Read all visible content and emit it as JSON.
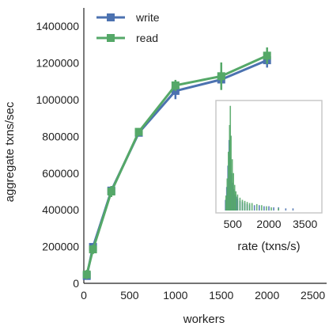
{
  "chart_data": [
    {
      "type": "line",
      "title": "",
      "xlabel": "workers",
      "ylabel": "aggregate txns/sec",
      "xlim": [
        0,
        2650
      ],
      "ylim": [
        0,
        1500000
      ],
      "xticks": [
        0,
        500,
        1000,
        1500,
        2000,
        2500
      ],
      "xtick_labels": [
        "0",
        "500",
        "1000",
        "1500",
        "2000",
        "2500"
      ],
      "yticks": [
        0,
        200000,
        400000,
        600000,
        800000,
        1000000,
        1200000,
        1400000
      ],
      "ytick_labels": [
        "0",
        "200000",
        "400000",
        "600000",
        "800000",
        "1000000",
        "1200000",
        "1400000"
      ],
      "grid": false,
      "legend_position": "top-left",
      "x": [
        32,
        100,
        300,
        600,
        1000,
        1500,
        2000
      ],
      "series": [
        {
          "name": "write",
          "color": "#4c72b0",
          "marker": "square",
          "values": [
            40000,
            198000,
            505000,
            820000,
            1048000,
            1110000,
            1215000
          ],
          "error": [
            0,
            15000,
            25000,
            15000,
            45000,
            50000,
            40000
          ]
        },
        {
          "name": "read",
          "color": "#55a868",
          "marker": "square",
          "values": [
            48000,
            185000,
            500000,
            825000,
            1078000,
            1128000,
            1240000
          ],
          "error": [
            25000,
            25000,
            30000,
            20000,
            30000,
            75000,
            45000
          ]
        }
      ]
    },
    {
      "type": "bar",
      "subtype": "histogram-inset",
      "title": "",
      "xlabel": "rate (txns/s)",
      "ylabel": "",
      "xlim": [
        -100,
        4100
      ],
      "ylim": [
        0,
        1
      ],
      "xticks": [
        500,
        2000,
        3500
      ],
      "xtick_labels": [
        "500",
        "2000",
        "3500"
      ],
      "grid": false,
      "series": [
        {
          "name": "write",
          "color": "#4c72b0",
          "bins": [
            [
              200,
              0.1
            ],
            [
              250,
              0.22
            ],
            [
              300,
              0.42
            ],
            [
              350,
              0.66
            ],
            [
              400,
              0.5
            ],
            [
              450,
              0.35
            ],
            [
              500,
              0.26
            ],
            [
              550,
              0.2
            ],
            [
              600,
              0.15
            ],
            [
              650,
              0.13
            ],
            [
              700,
              0.11
            ],
            [
              800,
              0.09
            ],
            [
              900,
              0.08
            ],
            [
              1000,
              0.07
            ],
            [
              1100,
              0.06
            ],
            [
              1200,
              0.05
            ],
            [
              1400,
              0.05
            ],
            [
              1600,
              0.05
            ],
            [
              1800,
              0.04
            ],
            [
              2000,
              0.04
            ],
            [
              2200,
              0.03
            ],
            [
              2400,
              0.03
            ],
            [
              2700,
              0.02
            ],
            [
              3000,
              0.02
            ]
          ]
        },
        {
          "name": "read",
          "color": "#55a868",
          "bins": [
            [
              220,
              0.14
            ],
            [
              270,
              0.3
            ],
            [
              320,
              0.55
            ],
            [
              370,
              0.8
            ],
            [
              400,
              0.98
            ],
            [
              430,
              0.7
            ],
            [
              480,
              0.48
            ],
            [
              530,
              0.35
            ],
            [
              580,
              0.24
            ],
            [
              630,
              0.18
            ],
            [
              700,
              0.15
            ],
            [
              800,
              0.12
            ],
            [
              900,
              0.1
            ],
            [
              1000,
              0.09
            ],
            [
              1100,
              0.08
            ],
            [
              1200,
              0.07
            ],
            [
              1300,
              0.07
            ],
            [
              1500,
              0.06
            ],
            [
              1700,
              0.05
            ],
            [
              1900,
              0.04
            ],
            [
              2100,
              0.03
            ],
            [
              2400,
              0.02
            ]
          ]
        }
      ]
    }
  ]
}
